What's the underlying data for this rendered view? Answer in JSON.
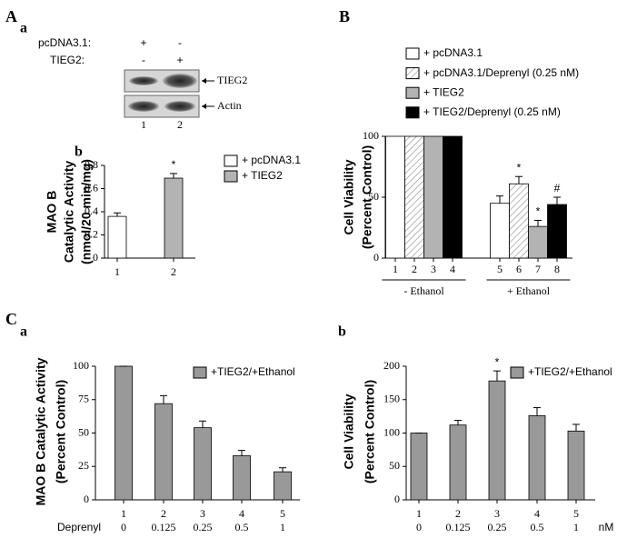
{
  "panel_labels": [
    "A",
    "a",
    "b",
    "B",
    "C",
    "a",
    "b"
  ],
  "blot": {
    "rows": [
      {
        "label": "pcDNA3.1:",
        "signs": [
          "+",
          "-"
        ]
      },
      {
        "label": "TIEG2:",
        "signs": [
          "-",
          "+"
        ]
      }
    ],
    "bands": [
      "TIEG2",
      "Actin"
    ],
    "lanes": [
      "1",
      "2"
    ]
  },
  "chart_data": [
    {
      "type": "bar",
      "ylabel": [
        "MAO B",
        "Catalytic Activity",
        "(nmol/20 min/mg)"
      ],
      "categories": [
        "1",
        "2"
      ],
      "series": [
        {
          "name": "+ pcDNA3.1",
          "color": "#ffffff",
          "values": [
            0.36,
            null
          ],
          "errors": [
            0.03,
            null
          ]
        },
        {
          "name": "+ TIEG2",
          "color": "#b3b3b3",
          "values": [
            null,
            0.69
          ],
          "errors": [
            null,
            0.04
          ]
        }
      ],
      "ylim": [
        0,
        0.8
      ],
      "yticks": [
        0,
        0.2,
        0.4,
        0.6,
        0.8
      ],
      "annotations": [
        {
          "text": "*",
          "category": "2"
        }
      ]
    },
    {
      "type": "bar",
      "ylabel": [
        "Cell Viability",
        "(Percent Control)"
      ],
      "categories": [
        "1",
        "2",
        "3",
        "4",
        "5",
        "6",
        "7",
        "8"
      ],
      "groups": [
        "- Ethanol",
        "+ Ethanol"
      ],
      "series": [
        {
          "name": "+ pcDNA3.1",
          "color": "#ffffff",
          "values": [
            100,
            null,
            null,
            null,
            45,
            null,
            null,
            null
          ],
          "errors": [
            null,
            null,
            null,
            null,
            6,
            null,
            null,
            null
          ]
        },
        {
          "name": "+ pcDNA3.1/Deprenyl (0.25 nM)",
          "color": "#ffffff",
          "pattern": "hatch",
          "values": [
            null,
            100,
            null,
            null,
            null,
            61,
            null,
            null
          ],
          "errors": [
            null,
            null,
            null,
            null,
            null,
            6,
            null,
            null
          ]
        },
        {
          "name": "+ TIEG2",
          "color": "#b3b3b3",
          "values": [
            null,
            null,
            100,
            null,
            null,
            null,
            26,
            null
          ],
          "errors": [
            null,
            null,
            null,
            null,
            null,
            null,
            5,
            null
          ]
        },
        {
          "name": "+ TIEG2/Deprenyl (0.25 nM)",
          "color": "#000000",
          "values": [
            null,
            null,
            null,
            100,
            null,
            null,
            null,
            44
          ],
          "errors": [
            null,
            null,
            null,
            null,
            null,
            null,
            null,
            6
          ]
        }
      ],
      "ylim": [
        0,
        100
      ],
      "yticks": [
        0,
        50,
        100
      ],
      "annotations": [
        {
          "text": "*",
          "category": "6"
        },
        {
          "text": "*",
          "category": "7"
        },
        {
          "text": "#",
          "category": "8"
        }
      ]
    },
    {
      "type": "bar",
      "ylabel": [
        "MAO B Catalytic Activity",
        "(Percent Control)"
      ],
      "categories": [
        "1",
        "2",
        "3",
        "4",
        "5"
      ],
      "doses": [
        "0",
        "0.125",
        "0.25",
        "0.5",
        "1"
      ],
      "dose_label": "Deprenyl",
      "series": [
        {
          "name": "+TIEG2/+Ethanol",
          "color": "#999999",
          "values": [
            100,
            72,
            54,
            33,
            21
          ],
          "errors": [
            0,
            6,
            5,
            4,
            3
          ]
        }
      ],
      "ylim": [
        0,
        100
      ],
      "yticks": [
        0,
        25,
        50,
        75,
        100
      ],
      "annotations": []
    },
    {
      "type": "bar",
      "ylabel": [
        "Cell Viability",
        "(Percent Control)"
      ],
      "categories": [
        "1",
        "2",
        "3",
        "4",
        "5"
      ],
      "doses": [
        "0",
        "0.125",
        "0.25",
        "0.5",
        "1"
      ],
      "dose_unit": "nM",
      "series": [
        {
          "name": "+TIEG2/+Ethanol",
          "color": "#999999",
          "values": [
            100,
            112,
            178,
            126,
            103
          ],
          "errors": [
            0,
            7,
            15,
            12,
            10
          ]
        }
      ],
      "ylim": [
        0,
        200
      ],
      "yticks": [
        0,
        50,
        100,
        150,
        200
      ],
      "annotations": [
        {
          "text": "*",
          "category": "3"
        }
      ]
    }
  ]
}
